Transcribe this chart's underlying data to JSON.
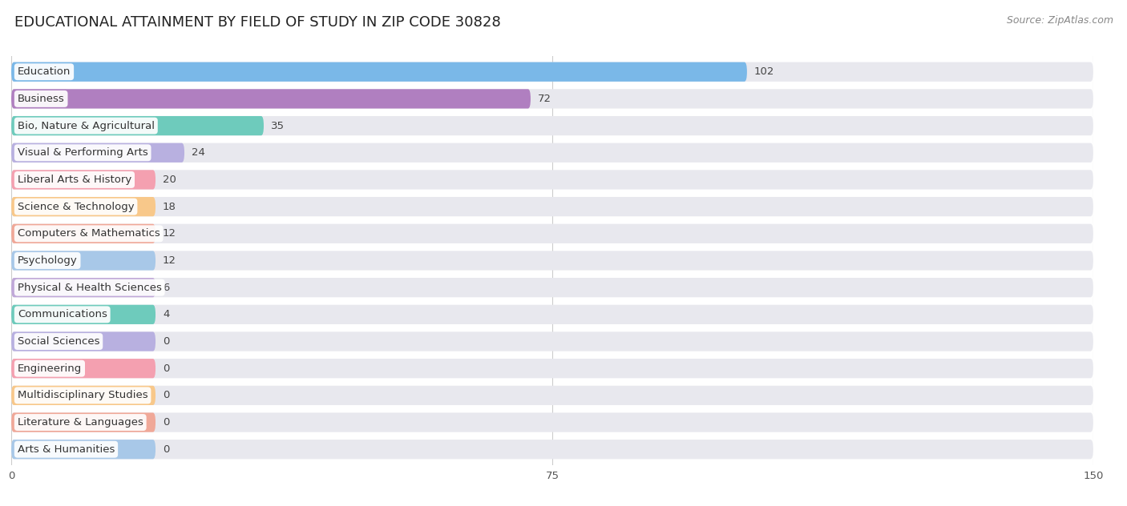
{
  "title": "EDUCATIONAL ATTAINMENT BY FIELD OF STUDY IN ZIP CODE 30828",
  "source": "Source: ZipAtlas.com",
  "categories": [
    "Education",
    "Business",
    "Bio, Nature & Agricultural",
    "Visual & Performing Arts",
    "Liberal Arts & History",
    "Science & Technology",
    "Computers & Mathematics",
    "Psychology",
    "Physical & Health Sciences",
    "Communications",
    "Social Sciences",
    "Engineering",
    "Multidisciplinary Studies",
    "Literature & Languages",
    "Arts & Humanities"
  ],
  "values": [
    102,
    72,
    35,
    24,
    20,
    18,
    12,
    12,
    6,
    4,
    0,
    0,
    0,
    0,
    0
  ],
  "colors": [
    "#7ab8e8",
    "#b07fc0",
    "#6ecbbc",
    "#b8b0e0",
    "#f4a0b0",
    "#f8c88a",
    "#f0a898",
    "#a8c8e8",
    "#c0a8d8",
    "#6ecbbc",
    "#b8b0e0",
    "#f4a0b0",
    "#f8c88a",
    "#f0a898",
    "#a8c8e8"
  ],
  "xlim": [
    0,
    150
  ],
  "xticks": [
    0,
    75,
    150
  ],
  "background_color": "#ffffff",
  "bar_bg_color": "#e8e8ee",
  "title_fontsize": 13,
  "label_fontsize": 9.5,
  "value_fontsize": 9.5,
  "source_fontsize": 9
}
